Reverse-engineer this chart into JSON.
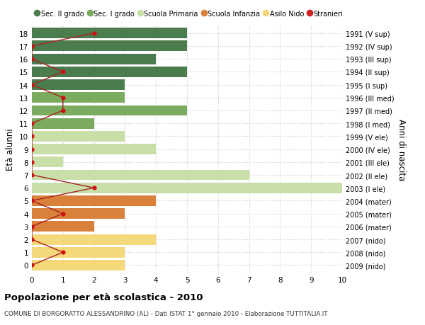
{
  "ages": [
    18,
    17,
    16,
    15,
    14,
    13,
    12,
    11,
    10,
    9,
    8,
    7,
    6,
    5,
    4,
    3,
    2,
    1,
    0
  ],
  "right_labels": [
    "1991 (V sup)",
    "1992 (IV sup)",
    "1993 (III sup)",
    "1994 (II sup)",
    "1995 (I sup)",
    "1996 (III med)",
    "1997 (II med)",
    "1998 (I med)",
    "1999 (V ele)",
    "2000 (IV ele)",
    "2001 (III ele)",
    "2002 (II ele)",
    "2003 (I ele)",
    "2004 (mater)",
    "2005 (mater)",
    "2006 (mater)",
    "2007 (nido)",
    "2008 (nido)",
    "2009 (nido)"
  ],
  "bar_values": [
    5,
    5,
    4,
    5,
    3,
    3,
    5,
    2,
    3,
    4,
    1,
    7,
    10,
    4,
    3,
    2,
    4,
    3,
    3
  ],
  "bar_colors": [
    "#4a7c4e",
    "#4a7c4e",
    "#4a7c4e",
    "#4a7c4e",
    "#4a7c4e",
    "#7aab5e",
    "#7aab5e",
    "#7aab5e",
    "#c8dfa8",
    "#c8dfa8",
    "#c8dfa8",
    "#c8dfa8",
    "#c8dfa8",
    "#d9813a",
    "#d9813a",
    "#d9813a",
    "#f5d87a",
    "#f5d87a",
    "#f5d87a"
  ],
  "stranieri_values": [
    2,
    0,
    0,
    1,
    0,
    1,
    1,
    0,
    0,
    0,
    0,
    0,
    2,
    0,
    1,
    0,
    0,
    1,
    0
  ],
  "ylabel": "Età alunni",
  "ylabel_right": "Anni di nascita",
  "title": "Popolazione per età scolastica - 2010",
  "subtitle": "COMUNE DI BORGORATTO ALESSANDRINO (AL) - Dati ISTAT 1° gennaio 2010 - Elaborazione TUTTITALIA.IT",
  "xlim": [
    0,
    10
  ],
  "xticks": [
    0,
    1,
    2,
    3,
    4,
    5,
    6,
    7,
    8,
    9,
    10
  ],
  "legend_labels": [
    "Sec. II grado",
    "Sec. I grado",
    "Scuola Primaria",
    "Scuola Infanzia",
    "Asilo Nido",
    "Stranieri"
  ],
  "legend_colors": [
    "#4a7c4e",
    "#7aab5e",
    "#c8dfa8",
    "#d9813a",
    "#f5d87a",
    "#cc2222"
  ],
  "bg_color": "#ffffff",
  "grid_color": "#cccccc",
  "bar_height": 0.82
}
